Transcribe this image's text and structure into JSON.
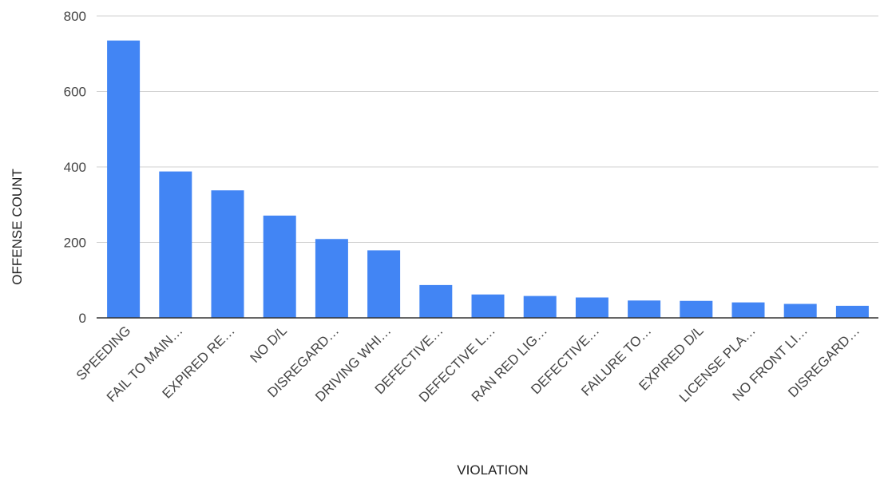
{
  "chart_data": {
    "type": "bar",
    "categories": [
      "SPEEDING",
      "FAIL TO MAIN…",
      "EXPIRED RE…",
      "NO D/L",
      "DISREGARD…",
      "DRIVING WHI…",
      "DEFECTIVE…",
      "DEFECTIVE L…",
      "RAN RED LIG…",
      "DEFECTIVE…",
      "FAILURE TO…",
      "EXPIRED D/L",
      "LICENSE PLA…",
      "NO FRONT LI…",
      "DISREGARD…"
    ],
    "values": [
      735,
      388,
      338,
      271,
      209,
      179,
      87,
      62,
      58,
      54,
      46,
      45,
      41,
      37,
      32
    ],
    "xlabel": "VIOLATION",
    "ylabel": "OFFENSE COUNT",
    "ylim": [
      0,
      800
    ],
    "yticks": [
      0,
      200,
      400,
      600,
      800
    ],
    "grid": true,
    "bar_color": "#4285f4",
    "gridline_color": "#d0d0d0",
    "axis_color": "#333333"
  }
}
